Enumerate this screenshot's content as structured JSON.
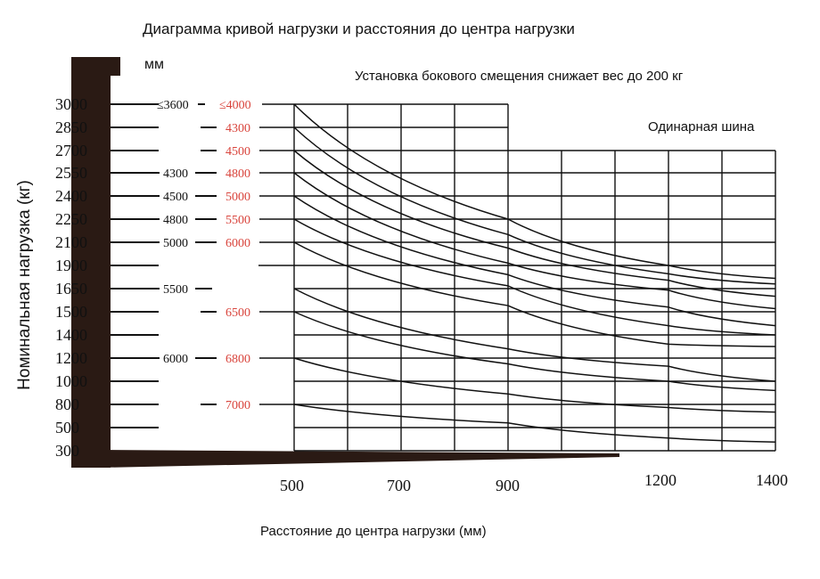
{
  "chart_data": {
    "type": "line",
    "title": "Диаграмма кривой нагрузки и расстояния до центра нагрузки",
    "unit_label": "мм",
    "note": "Установка бокового смещения снижает вес до 200 кг",
    "tire_label": "Одинарная шина",
    "xlabel": "Расстояние до центра нагрузки (мм)",
    "ylabel": "Номинальная нагрузка (кг)",
    "x_ticks": [
      "500",
      "700",
      "900",
      "1200",
      "1400"
    ],
    "y_ticks": [
      "3000",
      "2850",
      "2700",
      "2550",
      "2400",
      "2250",
      "2100",
      "1900",
      "1650",
      "1500",
      "1400",
      "1200",
      "1000",
      "800",
      "500",
      "300"
    ],
    "lift_heights_black": [
      {
        "load": 3000,
        "label": "≤3600"
      },
      {
        "load": 2550,
        "label": "4300"
      },
      {
        "load": 2400,
        "label": "4500"
      },
      {
        "load": 2250,
        "label": "4800"
      },
      {
        "load": 2100,
        "label": "5000"
      },
      {
        "load": 1650,
        "label": "5500"
      },
      {
        "load": 1200,
        "label": "6000"
      }
    ],
    "lift_heights_red": [
      {
        "load": 3000,
        "label": "≤4000"
      },
      {
        "load": 2850,
        "label": "4300"
      },
      {
        "load": 2700,
        "label": "4500"
      },
      {
        "load": 2550,
        "label": "4800"
      },
      {
        "load": 2400,
        "label": "5000"
      },
      {
        "load": 2250,
        "label": "5500"
      },
      {
        "load": 2100,
        "label": "6000"
      },
      {
        "load": 1500,
        "label": "6500"
      },
      {
        "load": 1200,
        "label": "6800"
      },
      {
        "load": 800,
        "label": "7000"
      }
    ],
    "series": [
      {
        "x": [
          500,
          900,
          1200,
          1400
        ],
        "values": [
          3000,
          2250,
          1900,
          1760
        ]
      },
      {
        "x": [
          500,
          900,
          1200,
          1400
        ],
        "values": [
          2850,
          2150,
          1810,
          1700
        ]
      },
      {
        "x": [
          500,
          900,
          1200,
          1400
        ],
        "values": [
          2700,
          2050,
          1740,
          1600
        ]
      },
      {
        "x": [
          500,
          900,
          1200,
          1400
        ],
        "values": [
          2550,
          1920,
          1640,
          1520
        ]
      },
      {
        "x": [
          500,
          900,
          1200,
          1400
        ],
        "values": [
          2400,
          1800,
          1530,
          1440
        ]
      },
      {
        "x": [
          500,
          900,
          1200,
          1400
        ],
        "values": [
          2250,
          1680,
          1440,
          1400
        ]
      },
      {
        "x": [
          500,
          900,
          1200,
          1400
        ],
        "values": [
          2100,
          1540,
          1320,
          1300
        ]
      },
      {
        "x": [
          500,
          900,
          1200,
          1400
        ],
        "values": [
          1650,
          1280,
          1130,
          1000
        ]
      },
      {
        "x": [
          500,
          900,
          1200,
          1400
        ],
        "values": [
          1500,
          1150,
          1000,
          920
        ]
      },
      {
        "x": [
          500,
          900,
          1200,
          1400
        ],
        "values": [
          1200,
          890,
          760,
          700
        ]
      },
      {
        "x": [
          500,
          900,
          1200,
          1400
        ],
        "values": [
          800,
          560,
          410,
          375
        ]
      }
    ]
  },
  "colors": {
    "red": "#d9443c",
    "black": "#111111",
    "frame": "#2a1a14"
  }
}
